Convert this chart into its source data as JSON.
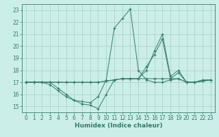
{
  "xlabel": "Humidex (Indice chaleur)",
  "x_values": [
    0,
    1,
    2,
    3,
    4,
    5,
    6,
    7,
    8,
    9,
    10,
    11,
    12,
    13,
    14,
    15,
    16,
    17,
    18,
    19,
    20,
    21,
    22,
    23
  ],
  "series": [
    [
      17,
      17,
      17,
      17,
      16.5,
      16,
      15.5,
      15.2,
      15.1,
      14.8,
      16.0,
      17.2,
      17.3,
      17.3,
      17.3,
      17.3,
      17.3,
      17.3,
      17.3,
      17.3,
      17.0,
      17.0,
      17.2,
      17.2
    ],
    [
      17,
      17,
      17,
      16.8,
      16.3,
      15.8,
      15.5,
      15.4,
      15.3,
      15.8,
      17.2,
      21.5,
      22.3,
      23.1,
      18.0,
      17.2,
      17.0,
      17.0,
      17.2,
      17.3,
      17.0,
      17.0,
      17.1,
      17.2
    ],
    [
      17,
      17,
      17,
      17,
      17,
      17,
      17,
      17,
      17,
      17,
      17.1,
      17.2,
      17.3,
      17.3,
      17.3,
      18.3,
      19.3,
      20.6,
      17.3,
      17.8,
      17.0,
      17.0,
      17.1,
      17.2
    ],
    [
      17,
      17,
      17,
      17,
      17,
      17,
      17,
      17,
      17,
      17,
      17.1,
      17.2,
      17.3,
      17.3,
      17.3,
      18.0,
      19.6,
      21.0,
      17.5,
      18.0,
      17.0,
      17.0,
      17.1,
      17.2
    ]
  ],
  "line_color": "#2e7d6e",
  "bg_color": "#cceee8",
  "grid_color": "#aaccc6",
  "ylim": [
    14.5,
    23.5
  ],
  "xlim": [
    -0.5,
    23.5
  ],
  "yticks": [
    15,
    16,
    17,
    18,
    19,
    20,
    21,
    22,
    23
  ],
  "xticks": [
    0,
    1,
    2,
    3,
    4,
    5,
    6,
    7,
    8,
    9,
    10,
    11,
    12,
    13,
    14,
    15,
    16,
    17,
    18,
    19,
    20,
    21,
    22,
    23
  ],
  "tick_fontsize": 5.5,
  "xlabel_fontsize": 6.5
}
